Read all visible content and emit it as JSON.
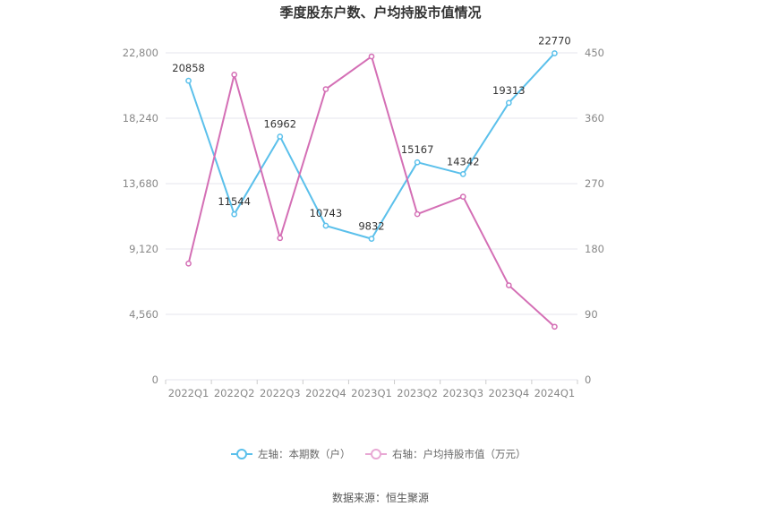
{
  "chart_data": {
    "type": "line",
    "title": "季度股东户数、户均持股市值情况",
    "categories": [
      "2022Q1",
      "2022Q2",
      "2022Q3",
      "2022Q4",
      "2023Q1",
      "2023Q2",
      "2023Q3",
      "2023Q4",
      "2024Q1"
    ],
    "left_axis": {
      "ylim": [
        0,
        22800
      ],
      "ticks": [
        0,
        4560,
        9120,
        13680,
        18240,
        22800
      ],
      "tick_labels": [
        "0",
        "4,560",
        "9,120",
        "13,680",
        "18,240",
        "22,800"
      ]
    },
    "right_axis": {
      "ylim": [
        0,
        450
      ],
      "ticks": [
        0,
        90,
        180,
        270,
        360,
        450
      ],
      "tick_labels": [
        "0",
        "90",
        "180",
        "270",
        "360",
        "450"
      ]
    },
    "series": [
      {
        "name": "左轴：本期数（户）",
        "axis": "left",
        "color": "#5bc0eb",
        "values": [
          20858,
          11544,
          16962,
          10743,
          9832,
          15167,
          14342,
          19313,
          22770
        ],
        "labels": [
          "20858",
          "11544",
          "16962",
          "10743",
          "9832",
          "15167",
          "14342",
          "19313",
          "22770"
        ]
      },
      {
        "name": "右轴：户均持股市值（万元）",
        "axis": "right",
        "color": "#d46fb5",
        "values": [
          160,
          420,
          195,
          400,
          445,
          228,
          252,
          130,
          73
        ]
      }
    ],
    "grid": true,
    "legend_position": "bottom-center"
  },
  "source": "数据来源：恒生聚源"
}
